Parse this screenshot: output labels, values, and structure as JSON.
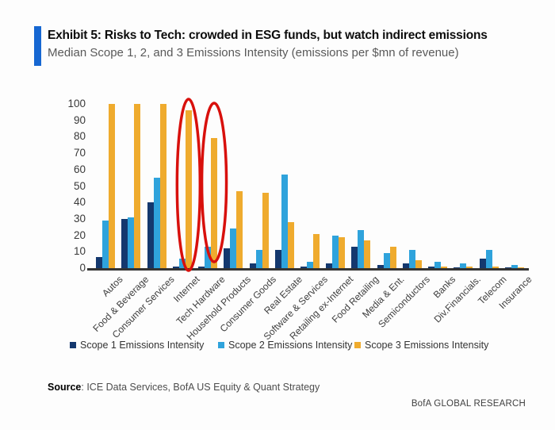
{
  "header": {
    "title": "Exhibit 5: Risks to Tech: crowded in ESG funds, but watch indirect emissions",
    "subtitle": "Median Scope 1, 2, and 3 Emissions Intensity (emissions per $mn of revenue)"
  },
  "chart_data": {
    "type": "bar",
    "title": "Median Scope 1, 2, and 3 Emissions Intensity (emissions per $mn of revenue)",
    "categories": [
      "Autos",
      "Food & Beverage",
      "Consumer Services",
      "Internet",
      "Tech Hardware",
      "Household Products",
      "Consumer Goods",
      "Real Estate",
      "Software & Services",
      "Retailing ex-Internet",
      "Food Retailing",
      "Media & Ent.",
      "Semiconductors",
      "Banks",
      "Div.Financials.",
      "Telecom",
      "Insurance"
    ],
    "series": [
      {
        "name": "Scope 1 Emissions Intensity",
        "color": "#14386E",
        "values": [
          7,
          30,
          40,
          1,
          1,
          12,
          3,
          11,
          1,
          3,
          13,
          2,
          3,
          1,
          0.5,
          6,
          0.5
        ]
      },
      {
        "name": "Scope 2 Emissions Intensity",
        "color": "#2FA3DC",
        "values": [
          29,
          31,
          55,
          6,
          13,
          24,
          11,
          57,
          4,
          20,
          23,
          9,
          11,
          4,
          3,
          11,
          2
        ]
      },
      {
        "name": "Scope 3 Emissions Intensity",
        "color": "#EFAB2E",
        "values": [
          100,
          100,
          100,
          96,
          79,
          47,
          46,
          28,
          21,
          19,
          17,
          13,
          5,
          1,
          1,
          1,
          0.5
        ]
      }
    ],
    "xlabel": "",
    "ylabel": "",
    "ylim": [
      0,
      100
    ],
    "yticks": [
      0,
      10,
      20,
      30,
      40,
      50,
      60,
      70,
      80,
      90,
      100
    ],
    "grid": false,
    "legend_position": "bottom",
    "annotations": [
      {
        "type": "ellipse",
        "category": "Internet",
        "series": "Scope 3 Emissions Intensity",
        "color": "#D8100C"
      },
      {
        "type": "ellipse",
        "category": "Tech Hardware",
        "series": "Scope 3 Emissions Intensity",
        "color": "#D8100C"
      }
    ]
  },
  "footer": {
    "source_label": "Source",
    "source_rest": ": ICE Data Services, BofA US Equity & Quant Strategy",
    "brand": "BofA GLOBAL RESEARCH"
  }
}
